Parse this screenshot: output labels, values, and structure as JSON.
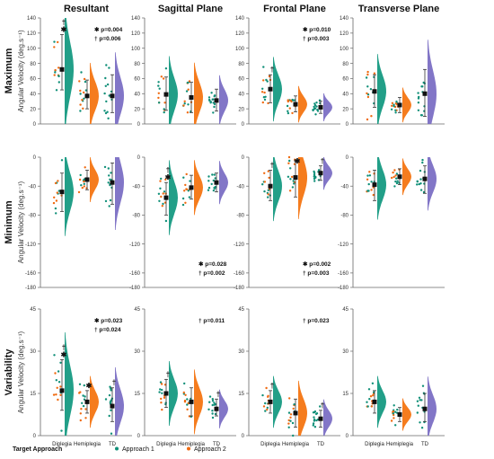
{
  "figure": {
    "columns": [
      "Resultant",
      "Sagittal Plane",
      "Frontal Plane",
      "Transverse Plane"
    ],
    "rows": [
      {
        "title": "Maximum",
        "ylabel": "Angular Velocity (deg.s⁻¹)",
        "yticks": [
          "0",
          "20",
          "40",
          "60",
          "80",
          "100",
          "120",
          "140"
        ],
        "ylim": [
          0,
          140
        ]
      },
      {
        "title": "Minimum",
        "ylabel": "Angular Velocity (deg.s⁻¹)",
        "yticks": [
          "-180",
          "-160",
          "-120",
          "-80",
          "-40",
          "0"
        ],
        "ylim": [
          -180,
          0
        ]
      },
      {
        "title": "Variability",
        "ylabel": "Angular Velocity (deg.s⁻¹)",
        "yticks": [
          "0",
          "15",
          "30",
          "45"
        ],
        "ylim": [
          0,
          45
        ]
      }
    ],
    "groups": [
      "Diplegia",
      "Hemiplegia",
      "TD"
    ],
    "legend": {
      "title": "Target Approach",
      "items": [
        {
          "label": "Approach 1",
          "color": "#0f8f78"
        },
        {
          "label": "Approach 2",
          "color": "#f06a10"
        }
      ]
    },
    "td_color": "#7b6fc4"
  },
  "chart_data": [
    {
      "type": "raincloud",
      "row": "Maximum",
      "column": "Resultant",
      "ylim": [
        0,
        140
      ],
      "groups": [
        {
          "name": "Diplegia",
          "mean": 72,
          "sd_low": 45,
          "sd_high": 118
        },
        {
          "name": "Hemiplegia",
          "mean": 37,
          "sd_low": 20,
          "sd_high": 58
        },
        {
          "name": "TD",
          "mean": 37,
          "sd_low": 15,
          "sd_high": 65
        }
      ],
      "annotations": [
        {
          "text": "✱ p=0.004"
        },
        {
          "text": "† p=0.006"
        }
      ],
      "group_marks": [
        {
          "group": "Diplegia",
          "text": "✱"
        },
        {
          "group": "Diplegia",
          "text": "†"
        }
      ]
    },
    {
      "type": "raincloud",
      "row": "Maximum",
      "column": "Sagittal Plane",
      "ylim": [
        0,
        140
      ],
      "groups": [
        {
          "name": "Diplegia",
          "mean": 39,
          "sd_low": 18,
          "sd_high": 62
        },
        {
          "name": "Hemiplegia",
          "mean": 35,
          "sd_low": 15,
          "sd_high": 55
        },
        {
          "name": "TD",
          "mean": 31,
          "sd_low": 17,
          "sd_high": 46
        }
      ],
      "annotations": [],
      "group_marks": []
    },
    {
      "type": "raincloud",
      "row": "Maximum",
      "column": "Frontal Plane",
      "ylim": [
        0,
        140
      ],
      "groups": [
        {
          "name": "Diplegia",
          "mean": 46,
          "sd_low": 28,
          "sd_high": 65
        },
        {
          "name": "Hemiplegia",
          "mean": 26,
          "sd_low": 16,
          "sd_high": 37
        },
        {
          "name": "TD",
          "mean": 22,
          "sd_low": 14,
          "sd_high": 30
        }
      ],
      "annotations": [
        {
          "text": "✱ p=0.010"
        },
        {
          "text": "† p=0.003"
        }
      ],
      "group_marks": [
        {
          "group": "Diplegia",
          "text": "†"
        }
      ]
    },
    {
      "type": "raincloud",
      "row": "Maximum",
      "column": "Transverse Plane",
      "ylim": [
        0,
        140
      ],
      "groups": [
        {
          "name": "Diplegia",
          "mean": 43,
          "sd_low": 22,
          "sd_high": 65
        },
        {
          "name": "Hemiplegia",
          "mean": 25,
          "sd_low": 15,
          "sd_high": 35
        },
        {
          "name": "TD",
          "mean": 40,
          "sd_low": 10,
          "sd_high": 72
        }
      ],
      "annotations": [],
      "group_marks": []
    },
    {
      "type": "raincloud",
      "row": "Minimum",
      "column": "Resultant",
      "ylim": [
        -180,
        0
      ],
      "groups": [
        {
          "name": "Diplegia",
          "mean": -48,
          "sd_low": -75,
          "sd_high": -22
        },
        {
          "name": "Hemiplegia",
          "mean": -31,
          "sd_low": -45,
          "sd_high": -18
        },
        {
          "name": "TD",
          "mean": -35,
          "sd_low": -65,
          "sd_high": -8
        }
      ],
      "annotations": [],
      "group_marks": []
    },
    {
      "type": "raincloud",
      "row": "Minimum",
      "column": "Sagittal Plane",
      "ylim": [
        -180,
        0
      ],
      "groups": [
        {
          "name": "Diplegia",
          "mean": -56,
          "sd_low": -80,
          "sd_high": -35
        },
        {
          "name": "Hemiplegia",
          "mean": -42,
          "sd_low": -58,
          "sd_high": -25
        },
        {
          "name": "TD",
          "mean": -35,
          "sd_low": -48,
          "sd_high": -22
        }
      ],
      "annotations": [
        {
          "text": "✱ p=0.028"
        },
        {
          "text": "† p=0.002"
        }
      ],
      "group_marks": [
        {
          "group": "Diplegia",
          "text": "✱"
        },
        {
          "group": "Diplegia",
          "text": "†"
        }
      ]
    },
    {
      "type": "raincloud",
      "row": "Minimum",
      "column": "Frontal Plane",
      "ylim": [
        -180,
        0
      ],
      "groups": [
        {
          "name": "Diplegia",
          "mean": -40,
          "sd_low": -60,
          "sd_high": -18
        },
        {
          "name": "Hemiplegia",
          "mean": -28,
          "sd_low": -55,
          "sd_high": -5
        },
        {
          "name": "TD",
          "mean": -22,
          "sd_low": -32,
          "sd_high": -12
        }
      ],
      "annotations": [
        {
          "text": "✱ p=0.002"
        },
        {
          "text": "† p=0.003"
        }
      ],
      "group_marks": [
        {
          "group": "Diplegia",
          "text": "†"
        },
        {
          "group": "Hemiplegia",
          "text": "✱"
        },
        {
          "group": "TD",
          "text": "†"
        }
      ]
    },
    {
      "type": "raincloud",
      "row": "Minimum",
      "column": "Transverse Plane",
      "ylim": [
        -180,
        0
      ],
      "groups": [
        {
          "name": "Diplegia",
          "mean": -38,
          "sd_low": -60,
          "sd_high": -18
        },
        {
          "name": "Hemiplegia",
          "mean": -27,
          "sd_low": -38,
          "sd_high": -16
        },
        {
          "name": "TD",
          "mean": -30,
          "sd_low": -50,
          "sd_high": -12
        }
      ],
      "annotations": [],
      "group_marks": []
    },
    {
      "type": "raincloud",
      "row": "Variability",
      "column": "Resultant",
      "ylim": [
        0,
        45
      ],
      "groups": [
        {
          "name": "Diplegia",
          "mean": 16,
          "sd_low": 9,
          "sd_high": 27
        },
        {
          "name": "Hemiplegia",
          "mean": 12,
          "sd_low": 8,
          "sd_high": 16
        },
        {
          "name": "TD",
          "mean": 10.5,
          "sd_low": 5,
          "sd_high": 17
        }
      ],
      "annotations": [
        {
          "text": "✱ p=0.023"
        },
        {
          "text": "† p=0.024"
        }
      ],
      "group_marks": [
        {
          "group": "Diplegia",
          "text": "✱"
        },
        {
          "group": "Diplegia",
          "text": "†"
        },
        {
          "group": "Hemiplegia",
          "text": "✱"
        },
        {
          "group": "TD",
          "text": "†"
        }
      ]
    },
    {
      "type": "raincloud",
      "row": "Variability",
      "column": "Sagittal Plane",
      "ylim": [
        0,
        45
      ],
      "groups": [
        {
          "name": "Diplegia",
          "mean": 15,
          "sd_low": 10,
          "sd_high": 20
        },
        {
          "name": "Hemiplegia",
          "mean": 12,
          "sd_low": 7,
          "sd_high": 17
        },
        {
          "name": "TD",
          "mean": 9.5,
          "sd_low": 7,
          "sd_high": 13
        }
      ],
      "annotations": [
        {
          "text": "† p=0.011"
        }
      ],
      "group_marks": [
        {
          "group": "Diplegia",
          "text": "†"
        },
        {
          "group": "TD",
          "text": "†"
        }
      ]
    },
    {
      "type": "raincloud",
      "row": "Variability",
      "column": "Frontal Plane",
      "ylim": [
        0,
        45
      ],
      "groups": [
        {
          "name": "Diplegia",
          "mean": 12,
          "sd_low": 8,
          "sd_high": 16
        },
        {
          "name": "Hemiplegia",
          "mean": 8,
          "sd_low": 3,
          "sd_high": 13
        },
        {
          "name": "TD",
          "mean": 6,
          "sd_low": 3,
          "sd_high": 9
        }
      ],
      "annotations": [
        {
          "text": "† p=0.023"
        }
      ],
      "group_marks": [
        {
          "group": "Diplegia",
          "text": "†"
        },
        {
          "group": "TD",
          "text": "†"
        }
      ]
    },
    {
      "type": "raincloud",
      "row": "Variability",
      "column": "Transverse Plane",
      "ylim": [
        0,
        45
      ],
      "groups": [
        {
          "name": "Diplegia",
          "mean": 12,
          "sd_low": 8,
          "sd_high": 16
        },
        {
          "name": "Hemiplegia",
          "mean": 7.5,
          "sd_low": 5,
          "sd_high": 10
        },
        {
          "name": "TD",
          "mean": 9.5,
          "sd_low": 5,
          "sd_high": 15
        }
      ],
      "annotations": [],
      "group_marks": []
    }
  ]
}
